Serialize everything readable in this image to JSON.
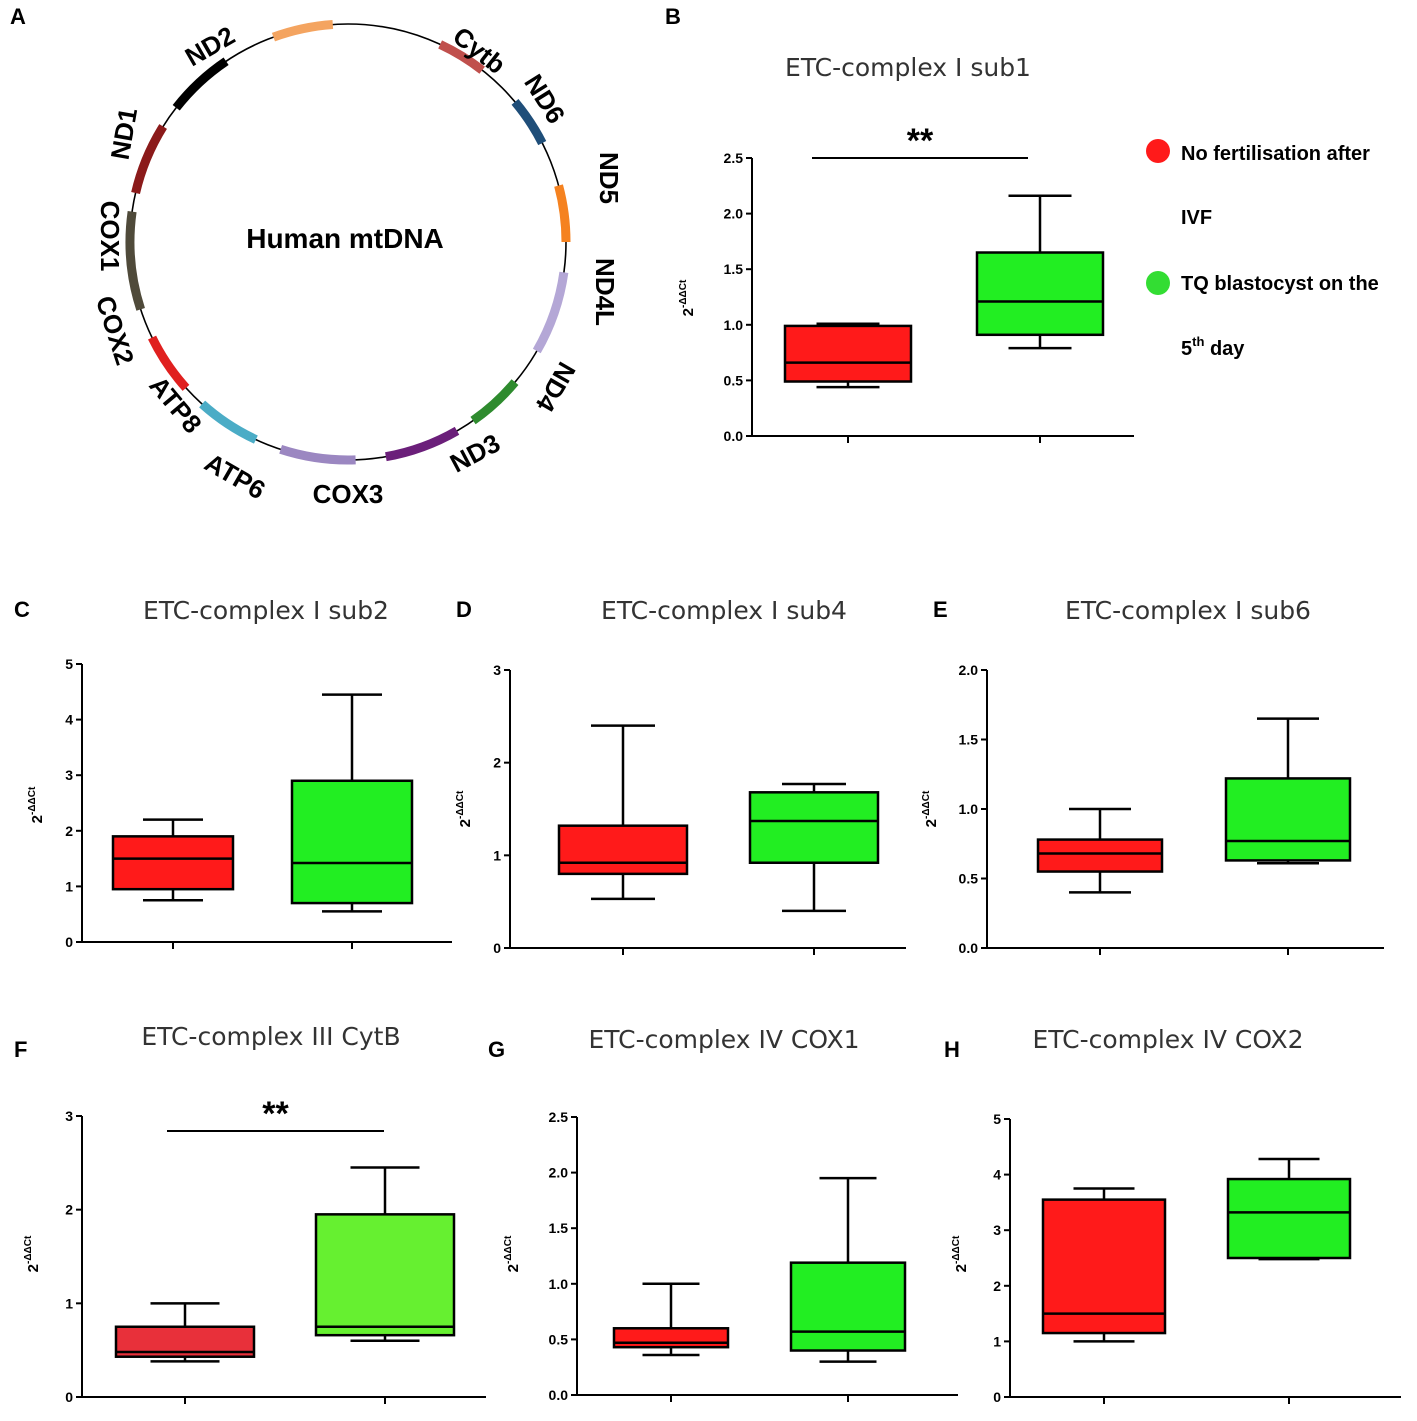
{
  "panels": {
    "A": "A",
    "B": "B",
    "C": "C",
    "D": "D",
    "E": "E",
    "F": "F",
    "G": "G",
    "H": "H"
  },
  "mtdna": {
    "center_label": "Human mtDNA",
    "genes": [
      {
        "name": "Cytb",
        "color": "#c0504d"
      },
      {
        "name": "ND6",
        "color": "#1f4e79"
      },
      {
        "name": "ND5",
        "color": "#f58220"
      },
      {
        "name": "ND4L",
        "color": "#b4a7d6"
      },
      {
        "name": "ND4",
        "color": "#2e8b2e"
      },
      {
        "name": "ND3",
        "color": "#6b1f7a"
      },
      {
        "name": "COX3",
        "color": "#9b87c1"
      },
      {
        "name": "ATP6",
        "color": "#4bacc6"
      },
      {
        "name": "ATP8",
        "color": "#e0201f"
      },
      {
        "name": "COX2",
        "color": "#4f4a3a"
      },
      {
        "name": "COX1",
        "color": "#8b1a1a"
      },
      {
        "name": "ND1",
        "color": "#000000"
      },
      {
        "name": "ND2",
        "color": "#f4a460"
      }
    ]
  },
  "legend": {
    "items": [
      {
        "line1": "No fertilisation after",
        "line2": "IVF",
        "color": "#ff1a1a"
      },
      {
        "line1": "TQ blastocyst on the",
        "line2_base": "5",
        "line2_sup": "th",
        "line2_rest": " day",
        "color": "#33dd33"
      }
    ]
  },
  "y_label": {
    "base": "2",
    "sup": "-ΔΔCt"
  },
  "colors": {
    "group1": "#ff1a1a",
    "group2": "#22ee22",
    "group1_F": "#e8303a",
    "group2_F": "#66f030"
  },
  "chart_data": [
    {
      "id": "B",
      "type": "box",
      "title": "ETC-complex I sub1",
      "ylim": [
        0,
        2.5
      ],
      "ticks": [
        "0.0",
        "0.5",
        "1.0",
        "1.5",
        "2.0",
        "2.5"
      ],
      "tick_values": [
        0,
        0.5,
        1,
        1.5,
        2,
        2.5
      ],
      "groups": [
        {
          "name": "No fertilisation after IVF",
          "min": 0.44,
          "q1": 0.49,
          "median": 0.66,
          "q3": 0.99,
          "max": 1.01
        },
        {
          "name": "TQ blastocyst on the 5th day",
          "min": 0.79,
          "q1": 0.91,
          "median": 1.21,
          "q3": 1.65,
          "max": 2.16
        }
      ],
      "significance": "**"
    },
    {
      "id": "C",
      "type": "box",
      "title": "ETC-complex I sub2",
      "ylim": [
        0,
        5
      ],
      "ticks": [
        "0",
        "1",
        "2",
        "3",
        "4",
        "5"
      ],
      "tick_values": [
        0,
        1,
        2,
        3,
        4,
        5
      ],
      "groups": [
        {
          "name": "No fertilisation after IVF",
          "min": 0.75,
          "q1": 0.95,
          "median": 1.5,
          "q3": 1.9,
          "max": 2.2
        },
        {
          "name": "TQ blastocyst on the 5th day",
          "min": 0.55,
          "q1": 0.7,
          "median": 1.42,
          "q3": 2.9,
          "max": 4.45
        }
      ],
      "significance": ""
    },
    {
      "id": "D",
      "type": "box",
      "title": "ETC-complex I sub4",
      "ylim": [
        0,
        3
      ],
      "ticks": [
        "0",
        "1",
        "2",
        "3"
      ],
      "tick_values": [
        0,
        1,
        2,
        3
      ],
      "groups": [
        {
          "name": "No fertilisation after IVF",
          "min": 0.53,
          "q1": 0.8,
          "median": 0.92,
          "q3": 1.32,
          "max": 2.4
        },
        {
          "name": "TQ blastocyst on the 5th day",
          "min": 0.4,
          "q1": 0.92,
          "median": 1.37,
          "q3": 1.68,
          "max": 1.77
        }
      ],
      "significance": ""
    },
    {
      "id": "E",
      "type": "box",
      "title": "ETC-complex I sub6",
      "ylim": [
        0,
        2
      ],
      "ticks": [
        "0.0",
        "0.5",
        "1.0",
        "1.5",
        "2.0"
      ],
      "tick_values": [
        0,
        0.5,
        1,
        1.5,
        2
      ],
      "groups": [
        {
          "name": "No fertilisation after IVF",
          "min": 0.4,
          "q1": 0.55,
          "median": 0.68,
          "q3": 0.78,
          "max": 1.0
        },
        {
          "name": "TQ blastocyst on the 5th day",
          "min": 0.61,
          "q1": 0.63,
          "median": 0.77,
          "q3": 1.22,
          "max": 1.65
        }
      ],
      "significance": ""
    },
    {
      "id": "F",
      "type": "box",
      "title": "ETC-complex III CytB",
      "ylim": [
        0,
        3
      ],
      "ticks": [
        "0",
        "1",
        "2",
        "3"
      ],
      "tick_values": [
        0,
        1,
        2,
        3
      ],
      "groups": [
        {
          "name": "No fertilisation after IVF",
          "min": 0.38,
          "q1": 0.43,
          "median": 0.48,
          "q3": 0.75,
          "max": 1.0
        },
        {
          "name": "TQ blastocyst on the 5th day",
          "min": 0.6,
          "q1": 0.66,
          "median": 0.75,
          "q3": 1.95,
          "max": 2.45
        }
      ],
      "significance": "**"
    },
    {
      "id": "G",
      "type": "box",
      "title": "ETC-complex IV COX1",
      "ylim": [
        0,
        2.5
      ],
      "ticks": [
        "0.0",
        "0.5",
        "1.0",
        "1.5",
        "2.0",
        "2.5"
      ],
      "tick_values": [
        0,
        0.5,
        1,
        1.5,
        2,
        2.5
      ],
      "groups": [
        {
          "name": "No fertilisation after IVF",
          "min": 0.36,
          "q1": 0.43,
          "median": 0.47,
          "q3": 0.6,
          "max": 1.0
        },
        {
          "name": "TQ blastocyst on the 5th day",
          "min": 0.3,
          "q1": 0.4,
          "median": 0.57,
          "q3": 1.19,
          "max": 1.95
        }
      ],
      "significance": ""
    },
    {
      "id": "H",
      "type": "box",
      "title": "ETC-complex IV COX2",
      "ylim": [
        0,
        5
      ],
      "ticks": [
        "0",
        "1",
        "2",
        "3",
        "4",
        "5"
      ],
      "tick_values": [
        0,
        1,
        2,
        3,
        4,
        5
      ],
      "groups": [
        {
          "name": "No fertilisation after IVF",
          "min": 1.0,
          "q1": 1.15,
          "median": 1.5,
          "q3": 3.55,
          "max": 3.75
        },
        {
          "name": "TQ blastocyst on the 5th day",
          "min": 2.48,
          "q1": 2.5,
          "median": 3.32,
          "q3": 3.92,
          "max": 4.28
        }
      ],
      "significance": ""
    }
  ]
}
